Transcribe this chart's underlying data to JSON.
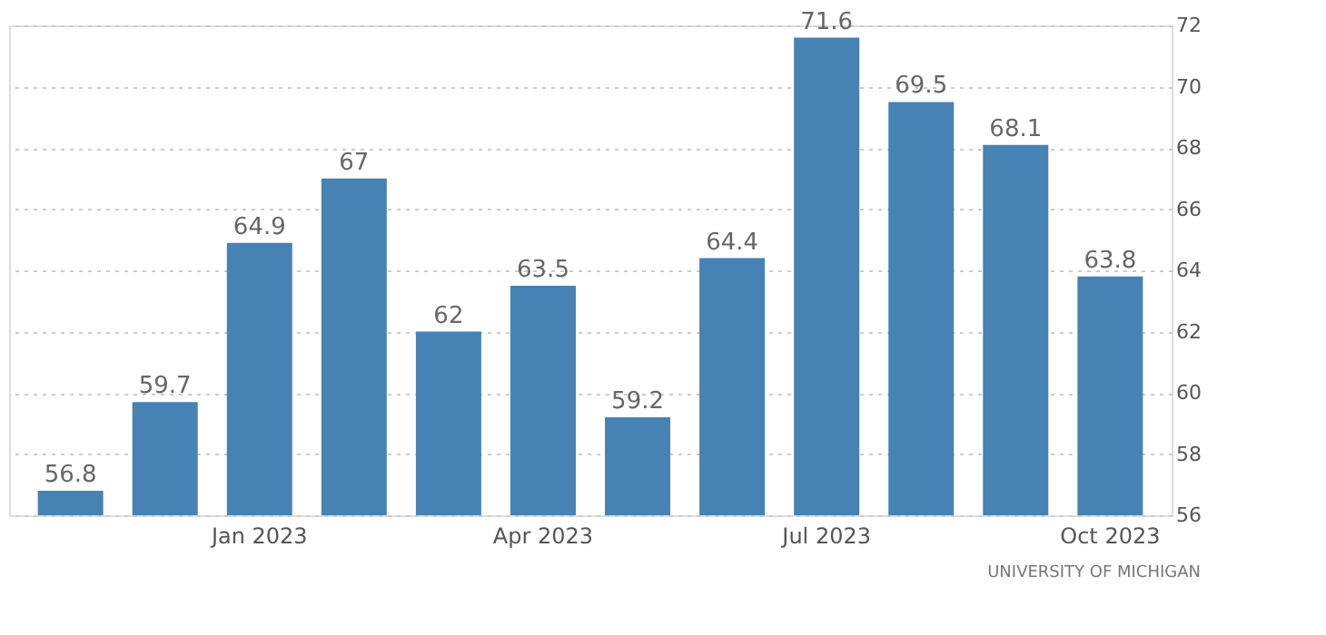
{
  "chart_data": {
    "type": "bar",
    "categories": [
      null,
      null,
      "Jan 2023",
      null,
      null,
      "Apr 2023",
      null,
      null,
      "Jul 2023",
      null,
      null,
      "Oct 2023"
    ],
    "values": [
      56.8,
      59.7,
      64.9,
      67,
      62,
      63.5,
      59.2,
      64.4,
      71.6,
      69.5,
      68.1,
      63.8
    ],
    "color": "#4682b4",
    "ylim": [
      56,
      72
    ],
    "yticks": [
      56,
      58,
      60,
      62,
      64,
      66,
      68,
      70,
      72
    ],
    "grid": "y",
    "data_labels": true,
    "annotations": [
      "UNIVERSITY OF MICHIGAN"
    ]
  }
}
